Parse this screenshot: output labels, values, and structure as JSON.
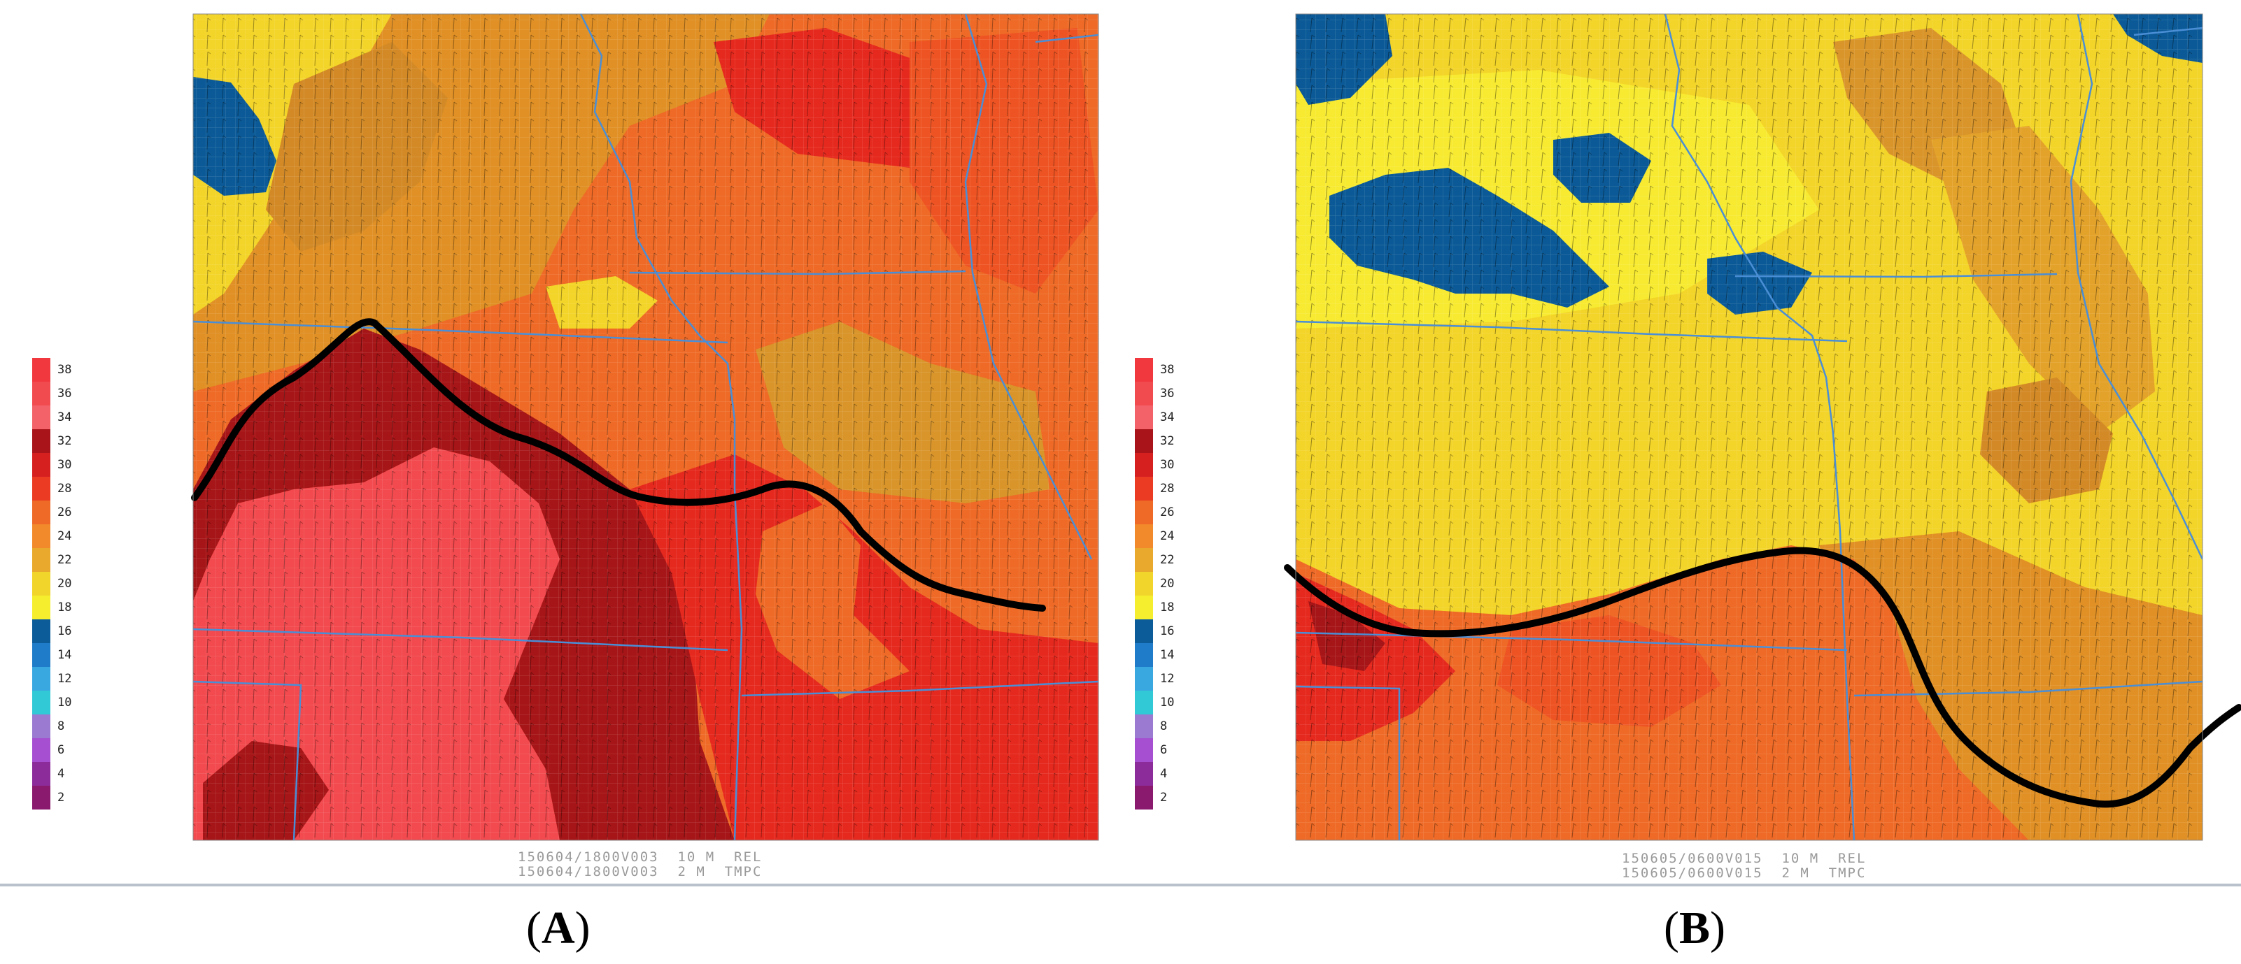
{
  "colorbar": {
    "labels": [
      "38",
      "36",
      "34",
      "32",
      "30",
      "28",
      "26",
      "24",
      "22",
      "20",
      "18",
      "16",
      "14",
      "12",
      "10",
      "8",
      "6",
      "4",
      "2"
    ],
    "colors": [
      "#f0383e",
      "#f14b4f",
      "#f26268",
      "#a8141a",
      "#d61f1f",
      "#eb3b23",
      "#ee6a26",
      "#f28a2c",
      "#e8a92c",
      "#f1d52a",
      "#f5ee2f",
      "#0c5c9a",
      "#1f7cc8",
      "#3aa8e0",
      "#32c9d6",
      "#9a7bd1",
      "#a64fd1",
      "#8c2c9a",
      "#8a1a6e"
    ]
  },
  "panels": [
    {
      "id": "A",
      "footer_line1": "150604/1800V003  10 M  REL",
      "footer_line2": "150604/1800V003  2 M  TMPC",
      "label_open": "(",
      "label_letter": "A",
      "label_close": ")"
    },
    {
      "id": "B",
      "footer_line1": "150605/0600V015  10 M  REL",
      "footer_line2": "150605/0600V015  2 M  TMPC",
      "label_open": "(",
      "label_letter": "B",
      "label_close": ")"
    }
  ],
  "map_colors": {
    "hot_light": "#f24a4e",
    "hot_dark": "#a61517",
    "red": "#e6291e",
    "orange_red": "#ee5423",
    "orange": "#f07a25",
    "amber": "#e79a2a",
    "tan": "#d9952a",
    "yellow": "#f3d428",
    "yellow_light": "#f7ea31",
    "blue": "#0b5a97",
    "boundary": "#4a8ed6",
    "front": "#000000"
  }
}
